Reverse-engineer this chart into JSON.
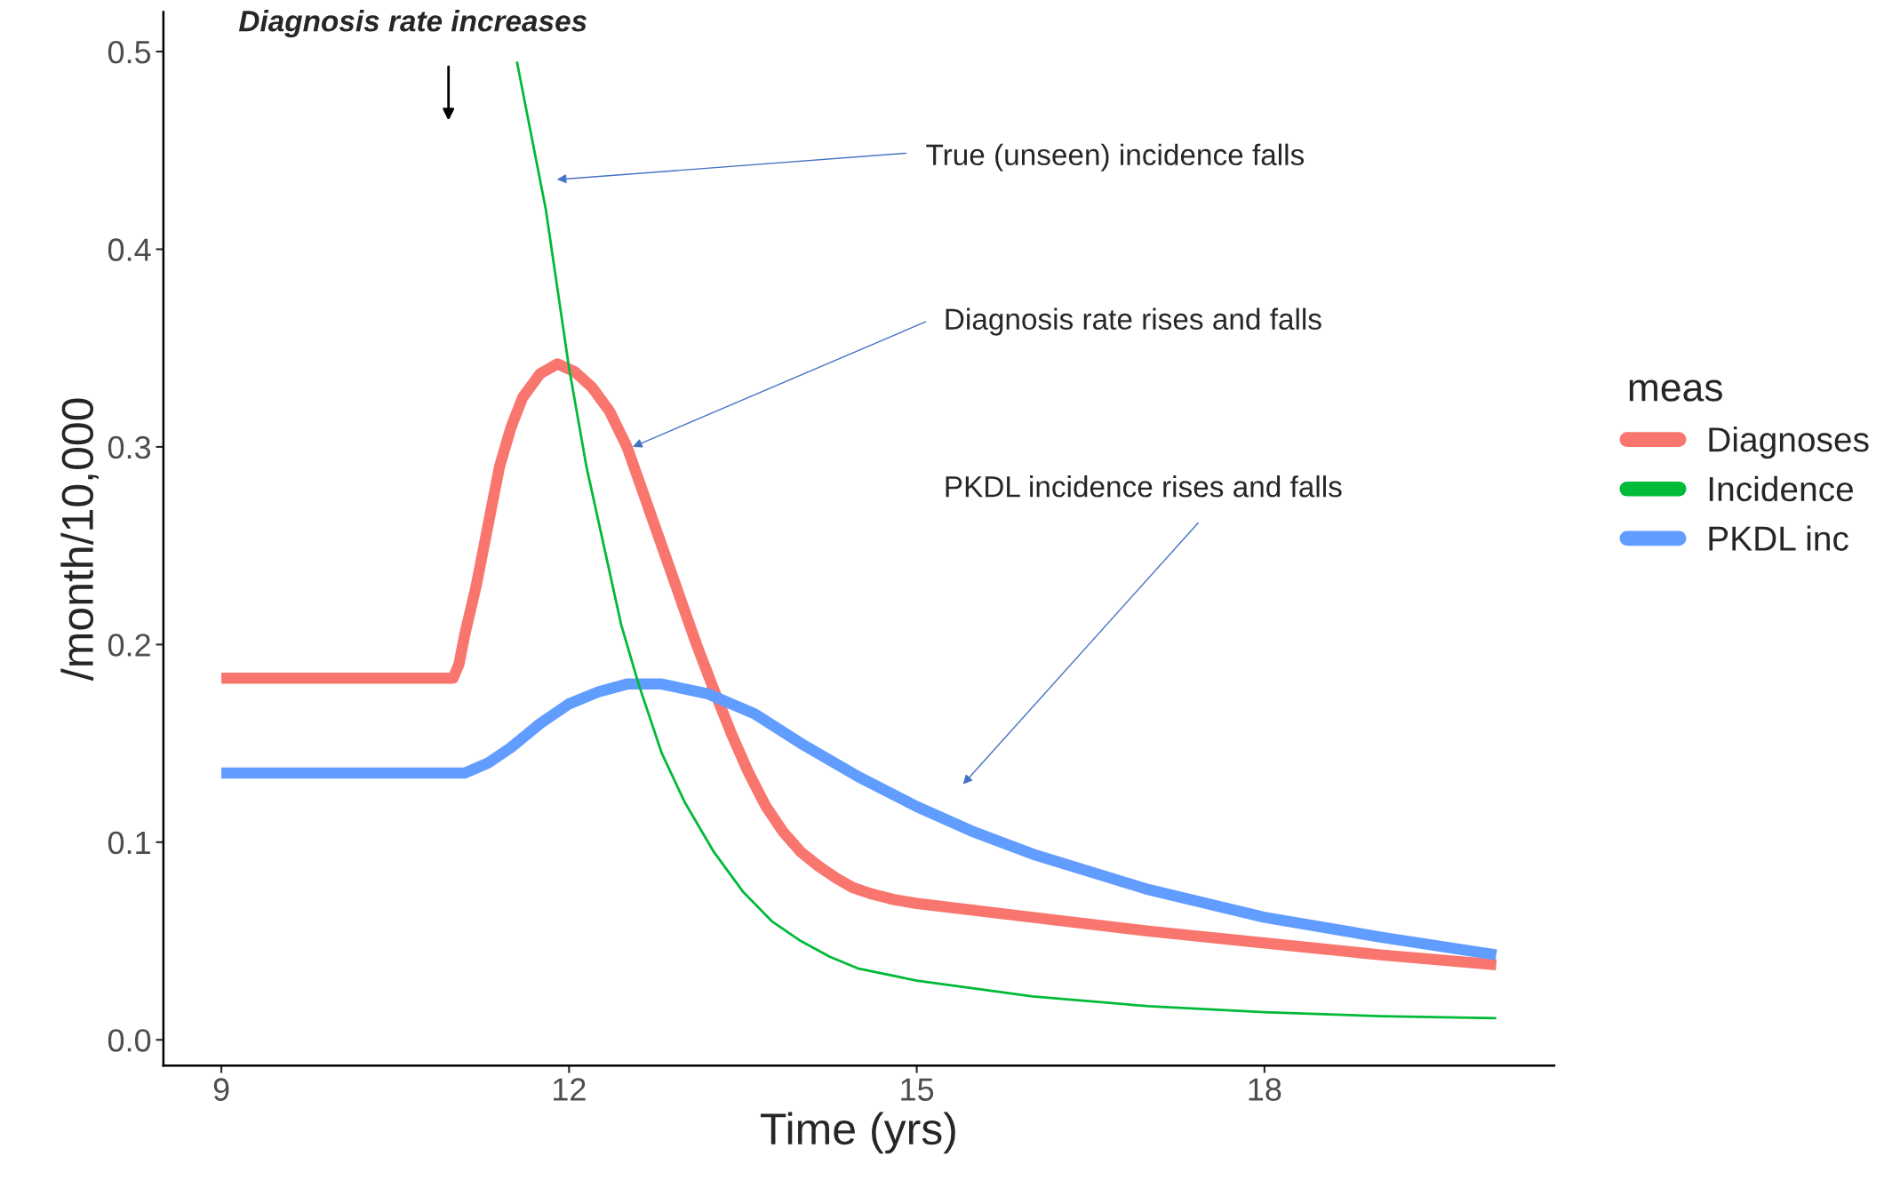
{
  "chart_data": {
    "type": "line",
    "xlabel": "Time (yrs)",
    "ylabel": "/month/10,000",
    "legend_title": "meas",
    "legend": "right",
    "grid": false,
    "xlim": [
      8.5,
      20.5
    ],
    "xticks": [
      9,
      12,
      15,
      18
    ],
    "ylim": [
      -0.013,
      0.52
    ],
    "yticks": [
      {
        "value": 0,
        "label": "0.0"
      },
      0.1,
      0.2,
      0.3,
      0.4,
      0.5
    ],
    "series": [
      {
        "name": "Diagnoses",
        "color": "#f8766d",
        "x": [
          9,
          11.0,
          11.05,
          11.1,
          11.2,
          11.3,
          11.4,
          11.5,
          11.6,
          11.75,
          11.9,
          12.05,
          12.2,
          12.35,
          12.5,
          12.65,
          12.8,
          12.95,
          13.1,
          13.25,
          13.4,
          13.55,
          13.7,
          13.85,
          14.0,
          14.15,
          14.3,
          14.45,
          14.6,
          14.8,
          15,
          16,
          17,
          18,
          19,
          20
        ],
        "values": [
          0.183,
          0.183,
          0.19,
          0.205,
          0.23,
          0.26,
          0.29,
          0.31,
          0.325,
          0.337,
          0.342,
          0.338,
          0.33,
          0.318,
          0.3,
          0.275,
          0.25,
          0.225,
          0.2,
          0.177,
          0.155,
          0.135,
          0.118,
          0.105,
          0.095,
          0.088,
          0.082,
          0.077,
          0.074,
          0.071,
          0.069,
          0.062,
          0.055,
          0.049,
          0.043,
          0.038
        ]
      },
      {
        "name": "Incidence",
        "color": "#00ba38",
        "x": [
          11.55,
          11.65,
          11.8,
          11.9,
          12.0,
          12.15,
          12.3,
          12.45,
          12.6,
          12.8,
          13.0,
          13.25,
          13.5,
          13.75,
          14.0,
          14.25,
          14.5,
          15,
          16,
          17,
          18,
          19,
          20
        ],
        "values": [
          0.495,
          0.465,
          0.42,
          0.38,
          0.34,
          0.29,
          0.25,
          0.21,
          0.18,
          0.145,
          0.12,
          0.095,
          0.075,
          0.06,
          0.05,
          0.042,
          0.036,
          0.03,
          0.022,
          0.017,
          0.014,
          0.012,
          0.011
        ]
      },
      {
        "name": "PKDL inc",
        "color": "#619cff",
        "x": [
          9,
          11.1,
          11.3,
          11.5,
          11.75,
          12,
          12.25,
          12.5,
          12.8,
          13.2,
          13.6,
          14,
          14.5,
          15,
          15.5,
          16,
          17,
          18,
          19,
          20
        ],
        "values": [
          0.135,
          0.135,
          0.14,
          0.148,
          0.16,
          0.17,
          0.176,
          0.18,
          0.18,
          0.175,
          0.165,
          0.15,
          0.133,
          0.118,
          0.105,
          0.094,
          0.076,
          0.062,
          0.052,
          0.043
        ]
      }
    ],
    "annotations": [
      "Diagnosis rate increases",
      "True (unseen) incidence falls",
      {
        "text": "Diagnosis rate rises and falls",
        "x": 12.55,
        "y": 0.3
      },
      "PKDL incidence rises and falls"
    ]
  }
}
